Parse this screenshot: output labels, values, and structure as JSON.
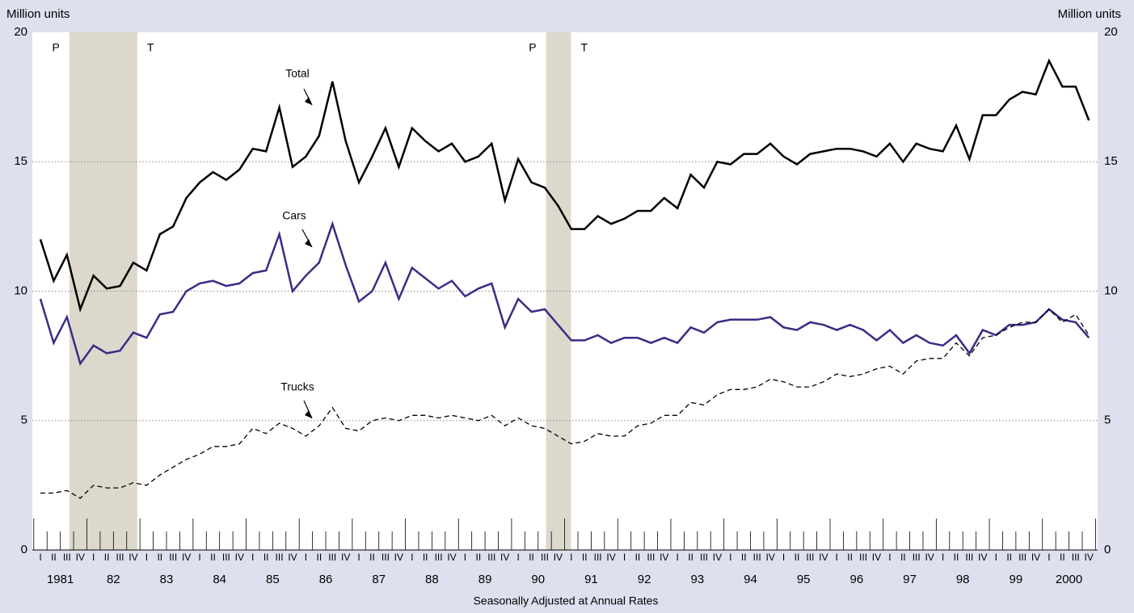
{
  "chart_data": {
    "type": "line",
    "y_label": "Million units",
    "y2_label": "Million units",
    "x_label": "Seasonally Adjusted at Annual Rates",
    "categories": [
      "I",
      "II",
      "III",
      "IV",
      "I",
      "II",
      "III",
      "IV",
      "I",
      "II",
      "III",
      "IV",
      "I",
      "II",
      "III",
      "IV",
      "I",
      "II",
      "III",
      "IV",
      "I",
      "II",
      "III",
      "IV",
      "I",
      "II",
      "III",
      "IV",
      "I",
      "II",
      "III",
      "IV",
      "I",
      "II",
      "III",
      "IV",
      "I",
      "II",
      "III",
      "IV",
      "I",
      "II",
      "III",
      "IV",
      "I",
      "II",
      "III",
      "IV",
      "I",
      "II",
      "III",
      "IV",
      "I",
      "II",
      "III",
      "IV",
      "I",
      "II",
      "III",
      "IV",
      "I",
      "II",
      "III",
      "IV",
      "I",
      "II",
      "III",
      "IV",
      "I",
      "II",
      "III",
      "IV",
      "I",
      "II",
      "III",
      "IV",
      "I",
      "II",
      "III",
      "IV"
    ],
    "years": [
      "1981",
      "82",
      "83",
      "84",
      "85",
      "86",
      "87",
      "88",
      "89",
      "90",
      "91",
      "92",
      "93",
      "94",
      "95",
      "96",
      "97",
      "98",
      "99",
      "2000"
    ],
    "xlim": [
      1981,
      2001
    ],
    "ylim": [
      0,
      20
    ],
    "yticks": [
      0,
      5,
      10,
      15,
      20
    ],
    "y2lim": [
      0,
      20
    ],
    "y2ticks": [
      0,
      5,
      10,
      15,
      20
    ],
    "grid": true,
    "recessions": [
      {
        "start": 1981.67,
        "end": 1982.95,
        "peak_label": "P",
        "trough_label": "T"
      },
      {
        "start": 1990.65,
        "end": 1991.12,
        "peak_label": "P",
        "trough_label": "T"
      }
    ],
    "series": [
      {
        "name": "Total",
        "color": "#000000",
        "dashed": false,
        "values": [
          12.0,
          10.4,
          11.4,
          9.3,
          10.6,
          10.1,
          10.2,
          11.1,
          10.8,
          12.2,
          12.5,
          13.6,
          14.2,
          14.6,
          14.3,
          14.7,
          15.5,
          15.4,
          17.1,
          14.8,
          15.2,
          16.0,
          18.1,
          15.8,
          14.2,
          15.2,
          16.3,
          14.8,
          16.3,
          15.8,
          15.4,
          15.7,
          15.0,
          15.2,
          15.7,
          13.5,
          15.1,
          14.2,
          14.0,
          13.3,
          12.4,
          12.4,
          12.9,
          12.6,
          12.8,
          13.1,
          13.1,
          13.6,
          13.2,
          14.5,
          14.0,
          15.0,
          14.9,
          15.3,
          15.3,
          15.7,
          15.2,
          14.9,
          15.3,
          15.4,
          15.5,
          15.5,
          15.4,
          15.2,
          15.7,
          15.0,
          15.7,
          15.5,
          15.4,
          16.4,
          15.1,
          16.8,
          16.8,
          17.4,
          17.7,
          17.6,
          18.9,
          17.9,
          17.9,
          16.6
        ]
      },
      {
        "name": "Cars",
        "color": "#3b2c85",
        "dashed": false,
        "values": [
          9.7,
          8.0,
          9.0,
          7.2,
          7.9,
          7.6,
          7.7,
          8.4,
          8.2,
          9.1,
          9.2,
          10.0,
          10.3,
          10.4,
          10.2,
          10.3,
          10.7,
          10.8,
          12.2,
          10.0,
          10.6,
          11.1,
          12.6,
          11.0,
          9.6,
          10.0,
          11.1,
          9.7,
          10.9,
          10.5,
          10.1,
          10.4,
          9.8,
          10.1,
          10.3,
          8.6,
          9.7,
          9.2,
          9.3,
          8.7,
          8.1,
          8.1,
          8.3,
          8.0,
          8.2,
          8.2,
          8.0,
          8.2,
          8.0,
          8.6,
          8.4,
          8.8,
          8.9,
          8.9,
          8.9,
          9.0,
          8.6,
          8.5,
          8.8,
          8.7,
          8.5,
          8.7,
          8.5,
          8.1,
          8.5,
          8.0,
          8.3,
          8.0,
          7.9,
          8.3,
          7.6,
          8.5,
          8.3,
          8.7,
          8.7,
          8.8,
          9.3,
          8.9,
          8.8,
          8.2
        ]
      },
      {
        "name": "Trucks",
        "color": "#000000",
        "dashed": true,
        "values": [
          2.2,
          2.2,
          2.3,
          2.0,
          2.5,
          2.4,
          2.4,
          2.6,
          2.5,
          2.9,
          3.2,
          3.5,
          3.7,
          4.0,
          4.0,
          4.1,
          4.7,
          4.5,
          4.9,
          4.7,
          4.4,
          4.8,
          5.5,
          4.7,
          4.6,
          5.0,
          5.1,
          5.0,
          5.2,
          5.2,
          5.1,
          5.2,
          5.1,
          5.0,
          5.2,
          4.8,
          5.1,
          4.8,
          4.7,
          4.4,
          4.1,
          4.2,
          4.5,
          4.4,
          4.4,
          4.8,
          4.9,
          5.2,
          5.2,
          5.7,
          5.6,
          6.0,
          6.2,
          6.2,
          6.3,
          6.6,
          6.5,
          6.3,
          6.3,
          6.5,
          6.8,
          6.7,
          6.8,
          7.0,
          7.1,
          6.8,
          7.3,
          7.4,
          7.4,
          8.0,
          7.5,
          8.2,
          8.3,
          8.6,
          8.8,
          8.8,
          9.3,
          8.8,
          9.1,
          8.3
        ]
      }
    ]
  }
}
